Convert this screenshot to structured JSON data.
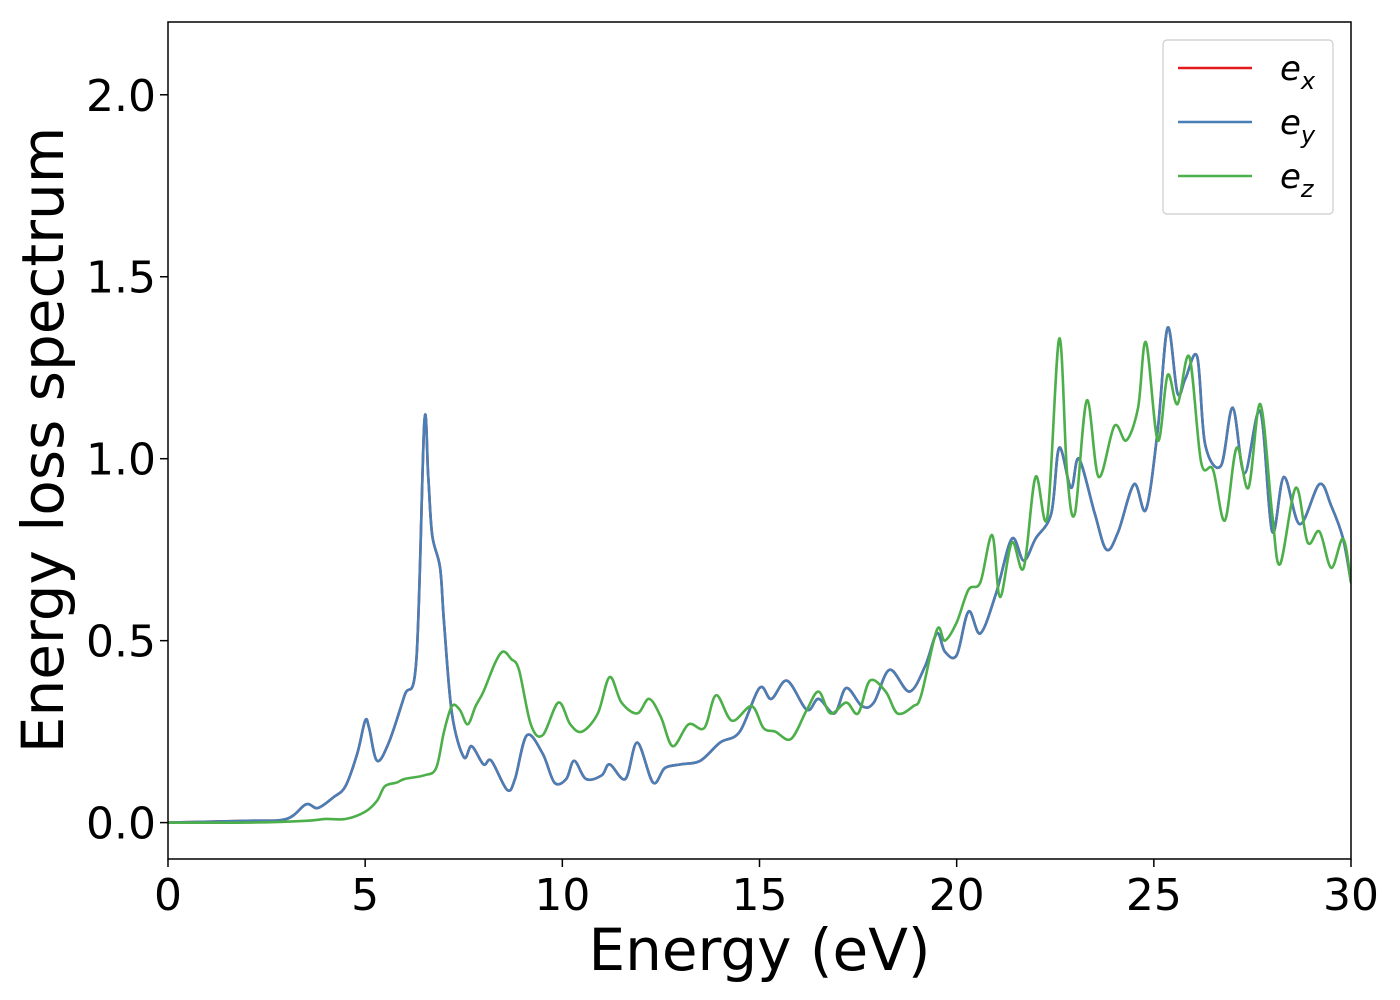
{
  "chart_data": {
    "type": "line",
    "xlabel": "Energy (eV)",
    "ylabel": "Energy loss spectrum",
    "xlim": [
      0,
      30
    ],
    "ylim": [
      -0.1,
      2.2
    ],
    "xticks": [
      "0",
      "5",
      "10",
      "15",
      "20",
      "25",
      "30"
    ],
    "yticks": [
      "0.0",
      "0.5",
      "1.0",
      "1.5",
      "2.0"
    ],
    "legend_position": "top-right",
    "grid": false,
    "series": [
      {
        "name": "e_x",
        "legend_main": "e",
        "legend_sub": "x",
        "color": "#e41a1c",
        "points": [
          [
            0,
            0
          ],
          [
            2,
            0.005
          ],
          [
            3,
            0.01
          ],
          [
            3.5,
            0.05
          ],
          [
            3.8,
            0.04
          ],
          [
            4.2,
            0.07
          ],
          [
            4.5,
            0.1
          ],
          [
            4.8,
            0.19
          ],
          [
            5,
            0.28
          ],
          [
            5.1,
            0.26
          ],
          [
            5.3,
            0.17
          ],
          [
            5.6,
            0.22
          ],
          [
            6,
            0.35
          ],
          [
            6.3,
            0.45
          ],
          [
            6.5,
            1.1
          ],
          [
            6.6,
            0.95
          ],
          [
            6.7,
            0.79
          ],
          [
            6.9,
            0.7
          ],
          [
            7,
            0.55
          ],
          [
            7.2,
            0.3
          ],
          [
            7.5,
            0.18
          ],
          [
            7.7,
            0.21
          ],
          [
            8,
            0.16
          ],
          [
            8.2,
            0.17
          ],
          [
            8.6,
            0.09
          ],
          [
            8.8,
            0.12
          ],
          [
            9.1,
            0.24
          ],
          [
            9.5,
            0.19
          ],
          [
            9.8,
            0.11
          ],
          [
            10.1,
            0.12
          ],
          [
            10.3,
            0.17
          ],
          [
            10.6,
            0.12
          ],
          [
            11,
            0.13
          ],
          [
            11.2,
            0.16
          ],
          [
            11.6,
            0.12
          ],
          [
            11.9,
            0.22
          ],
          [
            12.3,
            0.11
          ],
          [
            12.6,
            0.15
          ],
          [
            13,
            0.16
          ],
          [
            13.5,
            0.17
          ],
          [
            14,
            0.22
          ],
          [
            14.5,
            0.25
          ],
          [
            15,
            0.37
          ],
          [
            15.3,
            0.34
          ],
          [
            15.7,
            0.39
          ],
          [
            16.2,
            0.31
          ],
          [
            16.5,
            0.34
          ],
          [
            16.9,
            0.3
          ],
          [
            17.2,
            0.37
          ],
          [
            17.6,
            0.32
          ],
          [
            17.9,
            0.33
          ],
          [
            18.3,
            0.42
          ],
          [
            18.8,
            0.36
          ],
          [
            19.2,
            0.43
          ],
          [
            19.5,
            0.52
          ],
          [
            19.7,
            0.47
          ],
          [
            20,
            0.46
          ],
          [
            20.3,
            0.58
          ],
          [
            20.6,
            0.52
          ],
          [
            21,
            0.63
          ],
          [
            21.4,
            0.78
          ],
          [
            21.7,
            0.72
          ],
          [
            22,
            0.78
          ],
          [
            22.4,
            0.85
          ],
          [
            22.6,
            1.03
          ],
          [
            22.9,
            0.92
          ],
          [
            23.1,
            1.0
          ],
          [
            23.5,
            0.85
          ],
          [
            23.8,
            0.75
          ],
          [
            24.1,
            0.8
          ],
          [
            24.5,
            0.93
          ],
          [
            24.8,
            0.86
          ],
          [
            25.1,
            1.08
          ],
          [
            25.35,
            1.36
          ],
          [
            25.6,
            1.18
          ],
          [
            25.8,
            1.22
          ],
          [
            26.1,
            1.28
          ],
          [
            26.3,
            1.04
          ],
          [
            26.7,
            0.98
          ],
          [
            27,
            1.14
          ],
          [
            27.3,
            0.96
          ],
          [
            27.7,
            1.13
          ],
          [
            28,
            0.8
          ],
          [
            28.3,
            0.95
          ],
          [
            28.7,
            0.82
          ],
          [
            29.2,
            0.93
          ],
          [
            29.5,
            0.87
          ],
          [
            29.8,
            0.78
          ],
          [
            30,
            0.66
          ]
        ]
      },
      {
        "name": "e_y",
        "legend_main": "e",
        "legend_sub": "y",
        "color": "#477fb6",
        "points": [
          [
            0,
            0
          ],
          [
            2,
            0.005
          ],
          [
            3,
            0.01
          ],
          [
            3.5,
            0.05
          ],
          [
            3.8,
            0.04
          ],
          [
            4.2,
            0.07
          ],
          [
            4.5,
            0.1
          ],
          [
            4.8,
            0.19
          ],
          [
            5,
            0.28
          ],
          [
            5.1,
            0.26
          ],
          [
            5.3,
            0.17
          ],
          [
            5.6,
            0.22
          ],
          [
            6,
            0.35
          ],
          [
            6.3,
            0.45
          ],
          [
            6.5,
            1.1
          ],
          [
            6.6,
            0.95
          ],
          [
            6.7,
            0.79
          ],
          [
            6.9,
            0.7
          ],
          [
            7,
            0.55
          ],
          [
            7.2,
            0.3
          ],
          [
            7.5,
            0.18
          ],
          [
            7.7,
            0.21
          ],
          [
            8,
            0.16
          ],
          [
            8.2,
            0.17
          ],
          [
            8.6,
            0.09
          ],
          [
            8.8,
            0.12
          ],
          [
            9.1,
            0.24
          ],
          [
            9.5,
            0.19
          ],
          [
            9.8,
            0.11
          ],
          [
            10.1,
            0.12
          ],
          [
            10.3,
            0.17
          ],
          [
            10.6,
            0.12
          ],
          [
            11,
            0.13
          ],
          [
            11.2,
            0.16
          ],
          [
            11.6,
            0.12
          ],
          [
            11.9,
            0.22
          ],
          [
            12.3,
            0.11
          ],
          [
            12.6,
            0.15
          ],
          [
            13,
            0.16
          ],
          [
            13.5,
            0.17
          ],
          [
            14,
            0.22
          ],
          [
            14.5,
            0.25
          ],
          [
            15,
            0.37
          ],
          [
            15.3,
            0.34
          ],
          [
            15.7,
            0.39
          ],
          [
            16.2,
            0.31
          ],
          [
            16.5,
            0.34
          ],
          [
            16.9,
            0.3
          ],
          [
            17.2,
            0.37
          ],
          [
            17.6,
            0.32
          ],
          [
            17.9,
            0.33
          ],
          [
            18.3,
            0.42
          ],
          [
            18.8,
            0.36
          ],
          [
            19.2,
            0.43
          ],
          [
            19.5,
            0.52
          ],
          [
            19.7,
            0.47
          ],
          [
            20,
            0.46
          ],
          [
            20.3,
            0.58
          ],
          [
            20.6,
            0.52
          ],
          [
            21,
            0.63
          ],
          [
            21.4,
            0.78
          ],
          [
            21.7,
            0.72
          ],
          [
            22,
            0.78
          ],
          [
            22.4,
            0.85
          ],
          [
            22.6,
            1.03
          ],
          [
            22.9,
            0.92
          ],
          [
            23.1,
            1.0
          ],
          [
            23.5,
            0.85
          ],
          [
            23.8,
            0.75
          ],
          [
            24.1,
            0.8
          ],
          [
            24.5,
            0.93
          ],
          [
            24.8,
            0.86
          ],
          [
            25.1,
            1.08
          ],
          [
            25.35,
            1.36
          ],
          [
            25.6,
            1.18
          ],
          [
            25.8,
            1.22
          ],
          [
            26.1,
            1.28
          ],
          [
            26.3,
            1.04
          ],
          [
            26.7,
            0.98
          ],
          [
            27,
            1.14
          ],
          [
            27.3,
            0.96
          ],
          [
            27.7,
            1.13
          ],
          [
            28,
            0.8
          ],
          [
            28.3,
            0.95
          ],
          [
            28.7,
            0.82
          ],
          [
            29.2,
            0.93
          ],
          [
            29.5,
            0.87
          ],
          [
            29.8,
            0.78
          ],
          [
            30,
            0.66
          ]
        ]
      },
      {
        "name": "e_z",
        "legend_main": "e",
        "legend_sub": "z",
        "color": "#4daf4a",
        "points": [
          [
            0,
            0
          ],
          [
            2,
            0.0
          ],
          [
            3.5,
            0.005
          ],
          [
            4,
            0.01
          ],
          [
            4.5,
            0.01
          ],
          [
            5,
            0.03
          ],
          [
            5.3,
            0.06
          ],
          [
            5.5,
            0.1
          ],
          [
            5.8,
            0.11
          ],
          [
            6,
            0.12
          ],
          [
            6.5,
            0.13
          ],
          [
            6.8,
            0.15
          ],
          [
            7,
            0.25
          ],
          [
            7.2,
            0.32
          ],
          [
            7.4,
            0.31
          ],
          [
            7.6,
            0.27
          ],
          [
            7.8,
            0.32
          ],
          [
            8,
            0.36
          ],
          [
            8.3,
            0.44
          ],
          [
            8.5,
            0.47
          ],
          [
            8.7,
            0.45
          ],
          [
            8.9,
            0.42
          ],
          [
            9.2,
            0.27
          ],
          [
            9.5,
            0.24
          ],
          [
            9.9,
            0.33
          ],
          [
            10.2,
            0.27
          ],
          [
            10.5,
            0.25
          ],
          [
            10.9,
            0.3
          ],
          [
            11.2,
            0.4
          ],
          [
            11.5,
            0.33
          ],
          [
            11.9,
            0.3
          ],
          [
            12.2,
            0.34
          ],
          [
            12.5,
            0.29
          ],
          [
            12.8,
            0.21
          ],
          [
            13.2,
            0.27
          ],
          [
            13.6,
            0.26
          ],
          [
            13.9,
            0.35
          ],
          [
            14.3,
            0.28
          ],
          [
            14.8,
            0.32
          ],
          [
            15.1,
            0.26
          ],
          [
            15.4,
            0.25
          ],
          [
            15.8,
            0.23
          ],
          [
            16.2,
            0.31
          ],
          [
            16.5,
            0.36
          ],
          [
            16.8,
            0.3
          ],
          [
            17.2,
            0.33
          ],
          [
            17.5,
            0.3
          ],
          [
            17.8,
            0.39
          ],
          [
            18.2,
            0.36
          ],
          [
            18.5,
            0.3
          ],
          [
            18.9,
            0.32
          ],
          [
            19.1,
            0.35
          ],
          [
            19.5,
            0.53
          ],
          [
            19.7,
            0.5
          ],
          [
            20,
            0.55
          ],
          [
            20.3,
            0.64
          ],
          [
            20.6,
            0.66
          ],
          [
            20.9,
            0.79
          ],
          [
            21.1,
            0.62
          ],
          [
            21.4,
            0.77
          ],
          [
            21.7,
            0.7
          ],
          [
            22,
            0.95
          ],
          [
            22.3,
            0.84
          ],
          [
            22.6,
            1.33
          ],
          [
            22.8,
            0.96
          ],
          [
            23,
            0.85
          ],
          [
            23.3,
            1.16
          ],
          [
            23.6,
            0.95
          ],
          [
            24,
            1.09
          ],
          [
            24.3,
            1.05
          ],
          [
            24.6,
            1.14
          ],
          [
            24.8,
            1.32
          ],
          [
            25.1,
            1.05
          ],
          [
            25.35,
            1.23
          ],
          [
            25.6,
            1.15
          ],
          [
            25.9,
            1.28
          ],
          [
            26.2,
            0.99
          ],
          [
            26.5,
            0.97
          ],
          [
            26.8,
            0.83
          ],
          [
            27.1,
            1.03
          ],
          [
            27.4,
            0.92
          ],
          [
            27.7,
            1.15
          ],
          [
            28,
            0.85
          ],
          [
            28.2,
            0.71
          ],
          [
            28.6,
            0.92
          ],
          [
            28.9,
            0.77
          ],
          [
            29.2,
            0.8
          ],
          [
            29.5,
            0.7
          ],
          [
            29.8,
            0.78
          ],
          [
            30,
            0.66
          ]
        ]
      }
    ]
  }
}
